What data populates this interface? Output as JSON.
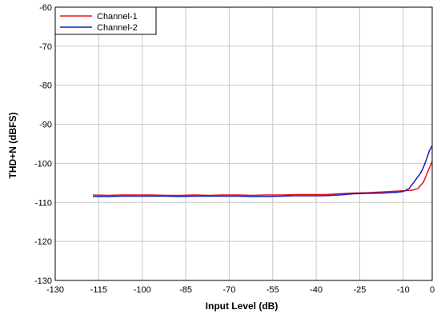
{
  "chart_data": {
    "type": "line",
    "title": "",
    "xlabel": "Input Level (dB)",
    "ylabel": "THD+N (dBFS)",
    "xlim": [
      -130,
      0
    ],
    "ylim": [
      -130,
      -60
    ],
    "x_ticks": [
      -130,
      -115,
      -100,
      -85,
      -70,
      -55,
      -40,
      -25,
      -10,
      0
    ],
    "y_ticks": [
      -60,
      -70,
      -80,
      -90,
      -100,
      -110,
      -120,
      -130
    ],
    "x_tick_labels": [
      "-130",
      "-115",
      "-100",
      "-85",
      "-70",
      "-55",
      "-40",
      "-25",
      "-10",
      "0"
    ],
    "y_tick_labels": [
      "-60",
      "-70",
      "-80",
      "-90",
      "-100",
      "-110",
      "-120",
      "-130"
    ],
    "grid": true,
    "legend_position": "top-left",
    "series": [
      {
        "name": "Channel-1",
        "color": "#e8141c",
        "x": [
          -117,
          -112,
          -107,
          -102,
          -97,
          -92,
          -87,
          -82,
          -77,
          -72,
          -67,
          -62,
          -57,
          -52,
          -47,
          -42,
          -37,
          -32,
          -27,
          -22,
          -17,
          -12,
          -9,
          -7,
          -5,
          -3,
          -2,
          -1,
          0
        ],
        "y": [
          -108.1,
          -108.2,
          -108.1,
          -108.1,
          -108.1,
          -108.2,
          -108.2,
          -108.1,
          -108.2,
          -108.1,
          -108.1,
          -108.2,
          -108.1,
          -108.1,
          -108.0,
          -108.0,
          -108.0,
          -107.8,
          -107.6,
          -107.5,
          -107.3,
          -107.1,
          -107.0,
          -106.9,
          -106.5,
          -104.8,
          -103.0,
          -101.2,
          -99.5
        ]
      },
      {
        "name": "Channel-2",
        "color": "#1a1ab8",
        "x": [
          -117,
          -112,
          -107,
          -102,
          -97,
          -92,
          -87,
          -82,
          -77,
          -72,
          -67,
          -62,
          -57,
          -52,
          -47,
          -42,
          -37,
          -32,
          -27,
          -22,
          -17,
          -12,
          -10,
          -8,
          -6,
          -4,
          -3,
          -2,
          -1,
          0
        ],
        "y": [
          -108.5,
          -108.5,
          -108.4,
          -108.4,
          -108.4,
          -108.4,
          -108.5,
          -108.4,
          -108.4,
          -108.4,
          -108.4,
          -108.5,
          -108.5,
          -108.4,
          -108.3,
          -108.3,
          -108.3,
          -108.1,
          -107.8,
          -107.7,
          -107.6,
          -107.4,
          -107.2,
          -106.5,
          -104.5,
          -102.5,
          -101.0,
          -99.0,
          -96.8,
          -95.5
        ]
      }
    ]
  }
}
